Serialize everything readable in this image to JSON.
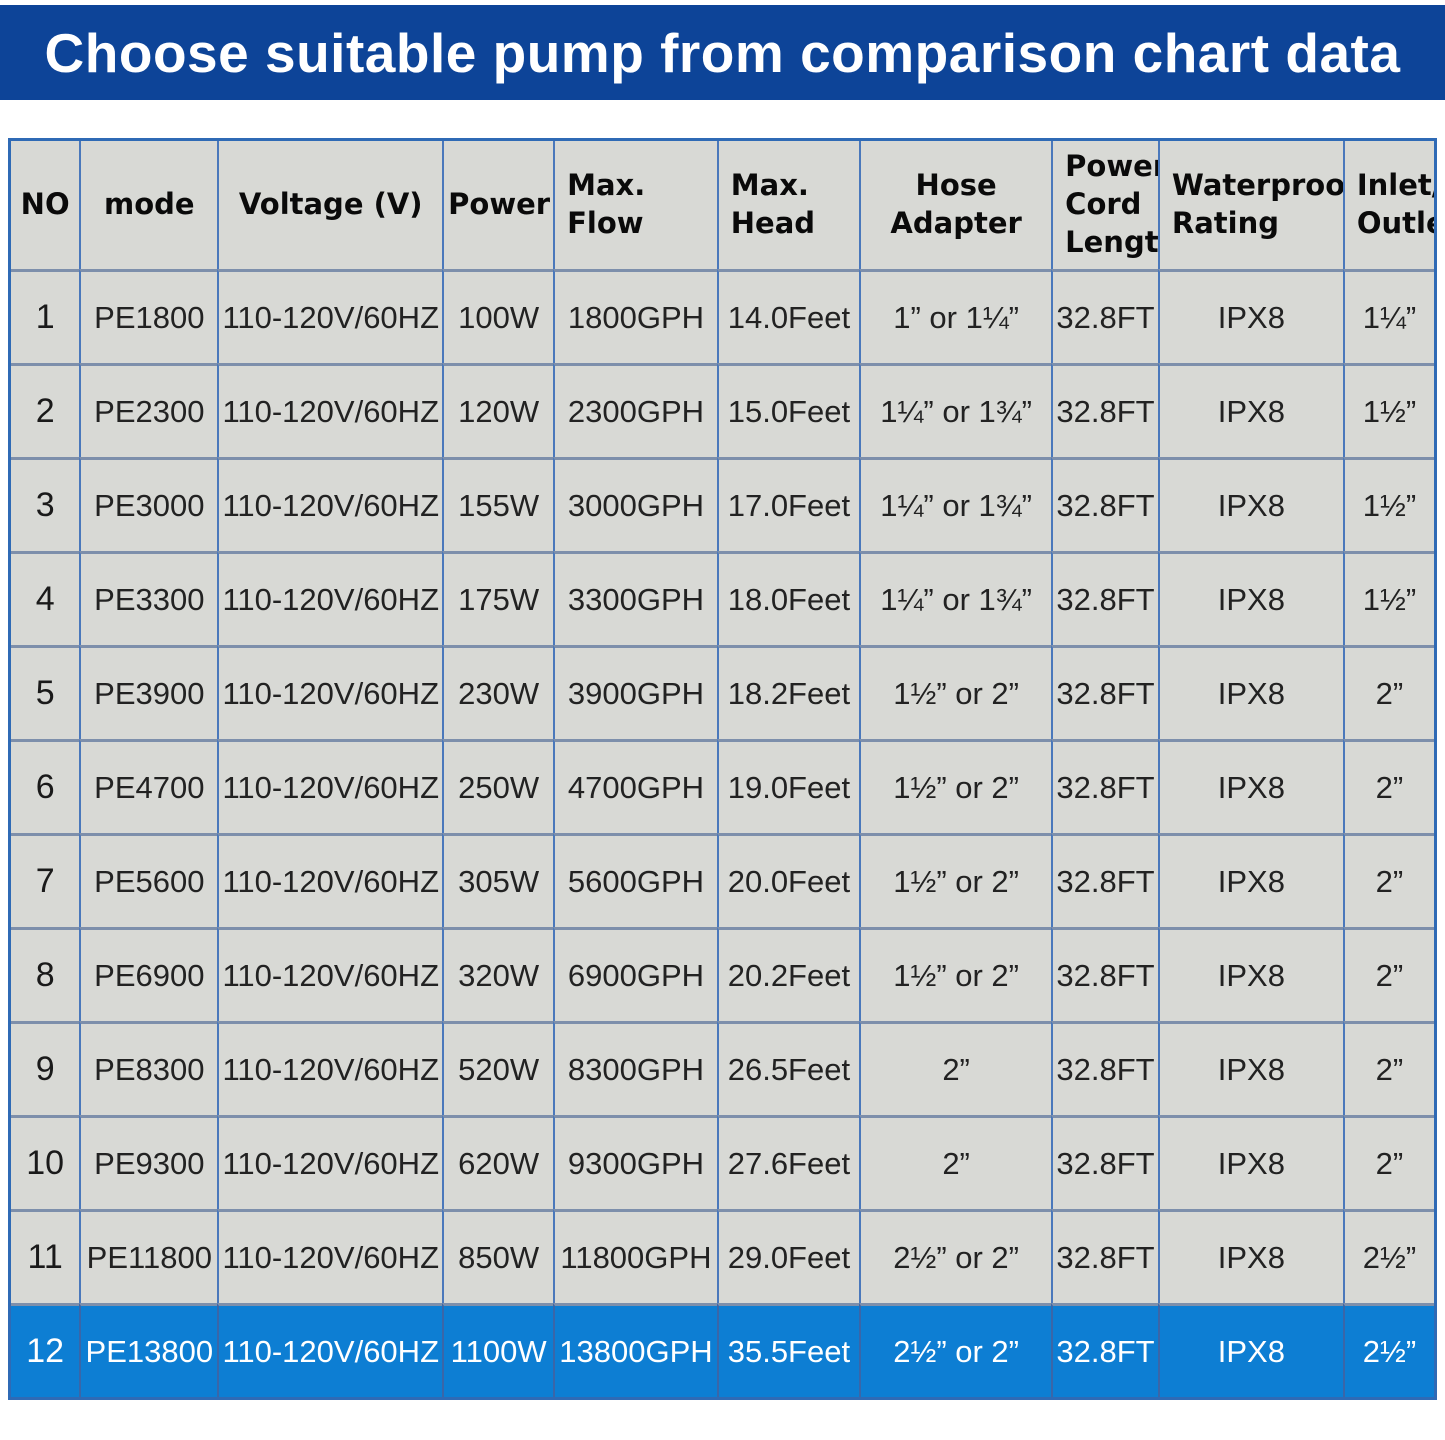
{
  "title": "Choose suitable pump from comparison chart data",
  "colors": {
    "title_bar_bg": "#0d4498",
    "title_text": "#ffffff",
    "cell_bg": "#d8d9d5",
    "grid_vertical": "#4a78bb",
    "grid_horizontal": "#7d8fab",
    "table_outer_border": "#2f6ab5",
    "highlight_row_bg": "#0d7ed3",
    "highlight_row_text": "#ffffff",
    "data_text": "#222222"
  },
  "chart_data": {
    "type": "table",
    "title": "Choose suitable pump from comparison chart data",
    "highlighted_row_index": 11,
    "columns": [
      {
        "key": "no",
        "label": "NO"
      },
      {
        "key": "mode",
        "label": "mode"
      },
      {
        "key": "voltage",
        "label": "Voltage (V)"
      },
      {
        "key": "power",
        "label": "Power"
      },
      {
        "key": "flow",
        "label": "Max.\nFlow"
      },
      {
        "key": "head",
        "label": "Max.\nHead"
      },
      {
        "key": "hose",
        "label": "Hose Adapter"
      },
      {
        "key": "cord",
        "label": "Power\nCord\nLength"
      },
      {
        "key": "waterproof",
        "label": "Waterproof\nRating"
      },
      {
        "key": "inlet",
        "label": "Inlet/\nOutlet"
      }
    ],
    "rows": [
      {
        "no": "1",
        "mode": "PE1800",
        "voltage": "110-120V/60HZ",
        "power": "100W",
        "flow": "1800GPH",
        "head": "14.0Feet",
        "hose": "1” or 1¼”",
        "cord": "32.8FT",
        "waterproof": "IPX8",
        "inlet": "1¼”"
      },
      {
        "no": "2",
        "mode": "PE2300",
        "voltage": "110-120V/60HZ",
        "power": "120W",
        "flow": "2300GPH",
        "head": "15.0Feet",
        "hose": "1¼” or 1¾”",
        "cord": "32.8FT",
        "waterproof": "IPX8",
        "inlet": "1½”"
      },
      {
        "no": "3",
        "mode": "PE3000",
        "voltage": "110-120V/60HZ",
        "power": "155W",
        "flow": "3000GPH",
        "head": "17.0Feet",
        "hose": "1¼” or 1¾”",
        "cord": "32.8FT",
        "waterproof": "IPX8",
        "inlet": "1½”"
      },
      {
        "no": "4",
        "mode": "PE3300",
        "voltage": "110-120V/60HZ",
        "power": "175W",
        "flow": "3300GPH",
        "head": "18.0Feet",
        "hose": "1¼” or 1¾”",
        "cord": "32.8FT",
        "waterproof": "IPX8",
        "inlet": "1½”"
      },
      {
        "no": "5",
        "mode": "PE3900",
        "voltage": "110-120V/60HZ",
        "power": "230W",
        "flow": "3900GPH",
        "head": "18.2Feet",
        "hose": "1½” or 2”",
        "cord": "32.8FT",
        "waterproof": "IPX8",
        "inlet": "2”"
      },
      {
        "no": "6",
        "mode": "PE4700",
        "voltage": "110-120V/60HZ",
        "power": "250W",
        "flow": "4700GPH",
        "head": "19.0Feet",
        "hose": "1½” or 2”",
        "cord": "32.8FT",
        "waterproof": "IPX8",
        "inlet": "2”"
      },
      {
        "no": "7",
        "mode": "PE5600",
        "voltage": "110-120V/60HZ",
        "power": "305W",
        "flow": "5600GPH",
        "head": "20.0Feet",
        "hose": "1½” or 2”",
        "cord": "32.8FT",
        "waterproof": "IPX8",
        "inlet": "2”"
      },
      {
        "no": "8",
        "mode": "PE6900",
        "voltage": "110-120V/60HZ",
        "power": "320W",
        "flow": "6900GPH",
        "head": "20.2Feet",
        "hose": "1½” or 2”",
        "cord": "32.8FT",
        "waterproof": "IPX8",
        "inlet": "2”"
      },
      {
        "no": "9",
        "mode": "PE8300",
        "voltage": "110-120V/60HZ",
        "power": "520W",
        "flow": "8300GPH",
        "head": "26.5Feet",
        "hose": "2”",
        "cord": "32.8FT",
        "waterproof": "IPX8",
        "inlet": "2”"
      },
      {
        "no": "10",
        "mode": "PE9300",
        "voltage": "110-120V/60HZ",
        "power": "620W",
        "flow": "9300GPH",
        "head": "27.6Feet",
        "hose": "2”",
        "cord": "32.8FT",
        "waterproof": "IPX8",
        "inlet": "2”"
      },
      {
        "no": "11",
        "mode": "PE11800",
        "voltage": "110-120V/60HZ",
        "power": "850W",
        "flow": "11800GPH",
        "head": "29.0Feet",
        "hose": "2½” or 2”",
        "cord": "32.8FT",
        "waterproof": "IPX8",
        "inlet": "2½”"
      },
      {
        "no": "12",
        "mode": "PE13800",
        "voltage": "110-120V/60HZ",
        "power": "1100W",
        "flow": "13800GPH",
        "head": "35.5Feet",
        "hose": "2½” or 2”",
        "cord": "32.8FT",
        "waterproof": "IPX8",
        "inlet": "2½”"
      }
    ]
  }
}
